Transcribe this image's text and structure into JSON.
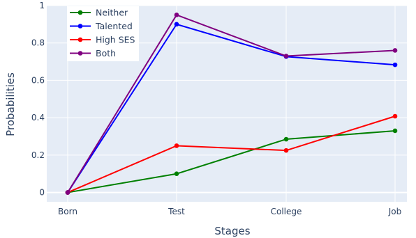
{
  "chart_data": {
    "type": "line",
    "categories": [
      "Born",
      "Test",
      "College",
      "Job"
    ],
    "series": [
      {
        "name": "Neither",
        "color": "#008000",
        "values": [
          0,
          0.1,
          0.285,
          0.33
        ]
      },
      {
        "name": "Talented",
        "color": "#0000ff",
        "values": [
          0,
          0.9,
          0.727,
          0.683
        ]
      },
      {
        "name": "High SES",
        "color": "#ff0000",
        "values": [
          0,
          0.25,
          0.225,
          0.408
        ]
      },
      {
        "name": "Both",
        "color": "#800080",
        "values": [
          0,
          0.95,
          0.73,
          0.76
        ]
      }
    ],
    "xlabel": "Stages",
    "ylabel": "Probabilities",
    "ylim": [
      -0.05,
      1.0
    ],
    "yticks": [
      0,
      0.2,
      0.4,
      0.6,
      0.8,
      1
    ],
    "ytick_labels": [
      "0",
      "0.2",
      "0.4",
      "0.6",
      "0.8",
      "1"
    ],
    "grid": true,
    "legend_position": "top-left"
  }
}
